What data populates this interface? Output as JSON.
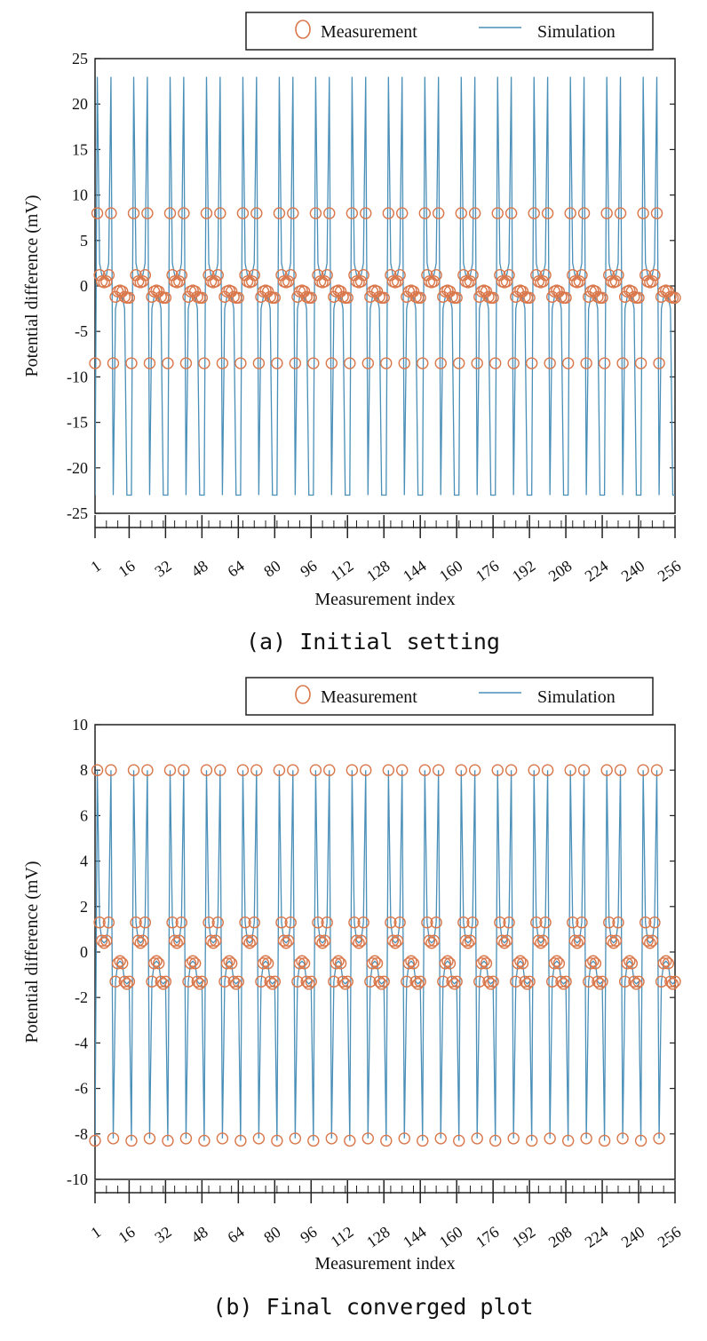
{
  "chart_data": [
    {
      "type": "line",
      "caption": "(a) Initial setting",
      "xlabel": "Measurement index",
      "ylabel": "Potential difference (mV)",
      "ylim": [
        -25,
        25
      ],
      "yticks": [
        -25,
        -20,
        -15,
        -10,
        -5,
        0,
        5,
        10,
        15,
        20,
        25
      ],
      "xlim": [
        1,
        256
      ],
      "xticks": [
        1,
        16,
        32,
        48,
        64,
        80,
        96,
        112,
        128,
        144,
        160,
        176,
        192,
        208,
        224,
        240,
        256
      ],
      "legend_position": "top-right",
      "grid": false,
      "series": [
        {
          "name": "Measurement",
          "marker": "circle",
          "color": "#d9774b",
          "x_range": [
            1,
            256
          ],
          "period": 16,
          "pattern": [
            -8.5,
            8.0,
            1.2,
            0.5,
            0.4,
            0.5,
            1.2,
            8.0,
            -8.5,
            -1.2,
            -0.6,
            -0.5,
            -0.6,
            -1.2,
            -1.3,
            -1.3
          ]
        },
        {
          "name": "Simulation",
          "marker": "line",
          "color": "#4a8fb8",
          "x_range": [
            1,
            256
          ],
          "period": 16,
          "pattern": [
            -23,
            23,
            2.5,
            1.2,
            1.0,
            1.2,
            2.5,
            23,
            -23,
            -2.5,
            -1.2,
            -1.0,
            -1.2,
            -2.5,
            -23,
            -23
          ]
        }
      ]
    },
    {
      "type": "line",
      "caption": "(b) Final converged plot",
      "xlabel": "Measurement index",
      "ylabel": "Potential difference (mV)",
      "ylim": [
        -10,
        10
      ],
      "yticks": [
        -10,
        -8,
        -6,
        -4,
        -2,
        0,
        2,
        4,
        6,
        8,
        10
      ],
      "xlim": [
        1,
        256
      ],
      "xticks": [
        1,
        16,
        32,
        48,
        64,
        80,
        96,
        112,
        128,
        144,
        160,
        176,
        192,
        208,
        224,
        240,
        256
      ],
      "legend_position": "top-right",
      "grid": false,
      "series": [
        {
          "name": "Measurement",
          "marker": "circle",
          "color": "#d9774b",
          "x_range": [
            1,
            256
          ],
          "period": 16,
          "pattern": [
            -8.3,
            8.0,
            1.3,
            0.5,
            0.4,
            0.5,
            1.3,
            8.0,
            -8.2,
            -1.3,
            -0.5,
            -0.4,
            -0.5,
            -1.3,
            -1.4,
            -1.3
          ]
        },
        {
          "name": "Simulation",
          "marker": "line",
          "color": "#4a8fb8",
          "x_range": [
            1,
            256
          ],
          "period": 16,
          "pattern": [
            -8.3,
            8.0,
            1.3,
            0.5,
            0.4,
            0.5,
            1.3,
            8.0,
            -8.2,
            -1.3,
            -0.5,
            -0.4,
            -0.5,
            -1.3,
            -1.4,
            -1.3
          ]
        }
      ]
    }
  ]
}
